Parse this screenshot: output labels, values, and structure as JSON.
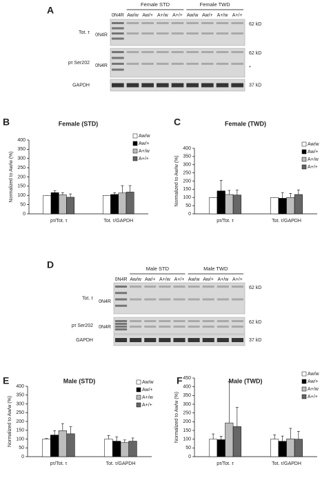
{
  "panels": [
    "A",
    "B",
    "C",
    "D",
    "E",
    "F"
  ],
  "blots": [
    {
      "groups": [
        "Female STD",
        "Female TWD"
      ],
      "lanes": [
        "0N4R",
        "Aw/w",
        "Aw/+",
        "A+/w",
        "A+/+",
        "Aw/w",
        "Aw/+",
        "A+/w",
        "A+/+"
      ],
      "rows": [
        {
          "label": "Tot. τ",
          "marker": "0N4R",
          "kd": "62 kD"
        },
        {
          "label": "pτ Ser202",
          "marker": "0N4R",
          "kd": "62 kD",
          "note": "*"
        },
        {
          "label": "GAPDH",
          "kd": "37 kD"
        }
      ]
    },
    {
      "groups": [
        "Male STD",
        "Male TWD"
      ],
      "lanes": [
        "0N4R",
        "Aw/w",
        "Aw/+",
        "A+/w",
        "A+/+",
        "Aw/w",
        "Aw/+",
        "A+/w",
        "A+/+"
      ],
      "rows": [
        {
          "label": "Tot. τ",
          "marker": "0N4R",
          "kd": "62 kD"
        },
        {
          "label": "pτ Ser202",
          "marker": "0N4R",
          "kd": "62 kD"
        },
        {
          "label": "GAPDH",
          "kd": "37 kD"
        }
      ]
    }
  ],
  "chart_data": [
    {
      "type": "bar",
      "title": "Female (STD)",
      "ylabel": "Normalized to Aw/w (%)",
      "categories": [
        "pτ/Tot. τ",
        "Tot. τ/GAPDH"
      ],
      "series": [
        {
          "name": "Aw/w",
          "color": "#ffffff",
          "values": [
            100,
            100
          ],
          "errors": [
            0,
            0
          ]
        },
        {
          "name": "Aw/+",
          "color": "#000000",
          "values": [
            115,
            105
          ],
          "errors": [
            10,
            10
          ]
        },
        {
          "name": "A+/w",
          "color": "#bdbdbd",
          "values": [
            103,
            113
          ],
          "errors": [
            12,
            40
          ]
        },
        {
          "name": "A+/+",
          "color": "#666666",
          "values": [
            90,
            118
          ],
          "errors": [
            18,
            35
          ]
        }
      ],
      "ylim": [
        0,
        400
      ],
      "yticks": [
        0,
        50,
        100,
        150,
        200,
        250,
        300,
        350,
        400
      ],
      "legend": "top-right"
    },
    {
      "type": "bar",
      "title": "Female (TWD)",
      "ylabel": "Normalized to Aw/w (%)",
      "categories": [
        "pτ/Tot. τ",
        "Tot. τ/GAPDH"
      ],
      "series": [
        {
          "name": "Aw/w",
          "color": "#ffffff",
          "values": [
            100,
            100
          ],
          "errors": [
            0,
            0
          ]
        },
        {
          "name": "Aw/+",
          "color": "#000000",
          "values": [
            140,
            95
          ],
          "errors": [
            65,
            35
          ]
        },
        {
          "name": "A+/w",
          "color": "#bdbdbd",
          "values": [
            118,
            100
          ],
          "errors": [
            25,
            25
          ]
        },
        {
          "name": "A+/+",
          "color": "#666666",
          "values": [
            115,
            118
          ],
          "errors": [
            30,
            28
          ]
        }
      ],
      "ylim": [
        0,
        400
      ],
      "yticks": [
        0,
        50,
        100,
        150,
        200,
        250,
        300,
        350,
        400
      ],
      "legend": "top-right"
    },
    {
      "type": "bar",
      "title": "Male (STD)",
      "ylabel": "Normalized to Aw/w (%)",
      "categories": [
        "pτ/Tot. τ",
        "Tot. τ/GAPDH"
      ],
      "series": [
        {
          "name": "Aw/w",
          "color": "#ffffff",
          "values": [
            100,
            100
          ],
          "errors": [
            3,
            20
          ]
        },
        {
          "name": "Aw/+",
          "color": "#000000",
          "values": [
            123,
            88
          ],
          "errors": [
            25,
            25
          ]
        },
        {
          "name": "A+/w",
          "color": "#bdbdbd",
          "values": [
            148,
            80
          ],
          "errors": [
            40,
            15
          ]
        },
        {
          "name": "A+/+",
          "color": "#666666",
          "values": [
            130,
            88
          ],
          "errors": [
            40,
            18
          ]
        }
      ],
      "ylim": [
        0,
        400
      ],
      "yticks": [
        0,
        50,
        100,
        150,
        200,
        250,
        300,
        350,
        400
      ],
      "legend": "top-right"
    },
    {
      "type": "bar",
      "title": "Male (TWD)",
      "ylabel": "Normalized to Aw/w (%)",
      "categories": [
        "pτ/Tot. τ",
        "Tot. τ/GAPDH"
      ],
      "series": [
        {
          "name": "Aw/w",
          "color": "#ffffff",
          "values": [
            100,
            100
          ],
          "errors": [
            30,
            25
          ]
        },
        {
          "name": "Aw/+",
          "color": "#000000",
          "values": [
            97,
            88
          ],
          "errors": [
            20,
            30
          ]
        },
        {
          "name": "A+/w",
          "color": "#bdbdbd",
          "values": [
            193,
            102
          ],
          "errors": [
            235,
            60
          ]
        },
        {
          "name": "A+/+",
          "color": "#666666",
          "values": [
            172,
            100
          ],
          "errors": [
            110,
            45
          ]
        }
      ],
      "ylim": [
        0,
        450
      ],
      "yticks": [
        0,
        50,
        100,
        150,
        200,
        250,
        300,
        350,
        400,
        450
      ],
      "legend": "top-right"
    }
  ]
}
